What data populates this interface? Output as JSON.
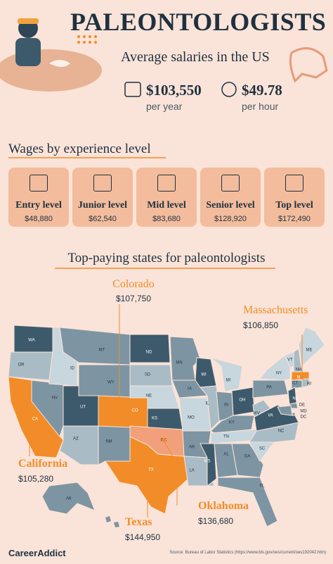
{
  "header": {
    "title": "PALEONTOLOGISTS",
    "subtitle": "Average salaries in the US"
  },
  "salaries": [
    {
      "amount": "$103,550",
      "unit": "per year"
    },
    {
      "amount": "$49.78",
      "unit": "per hour"
    }
  ],
  "experience": {
    "title": "Wages by experience level",
    "levels": [
      {
        "label": "Entry level",
        "wage": "$48,880"
      },
      {
        "label": "Junior level",
        "wage": "$62,540"
      },
      {
        "label": "Mid level",
        "wage": "$83,680"
      },
      {
        "label": "Senior level",
        "wage": "$128,920"
      },
      {
        "label": "Top level",
        "wage": "$172,490"
      }
    ]
  },
  "states": {
    "title": "Top-paying states for paleontologists",
    "callouts": [
      {
        "name": "Colorado",
        "wage": "$107,750"
      },
      {
        "name": "Massachusetts",
        "wage": "$106,850"
      },
      {
        "name": "California",
        "wage": "$105,280"
      },
      {
        "name": "Oklahoma",
        "wage": "$136,680"
      },
      {
        "name": "Texas",
        "wage": "$144,950"
      }
    ],
    "map_labels": [
      "WA",
      "OR",
      "CA",
      "NV",
      "ID",
      "MT",
      "WY",
      "UT",
      "AZ",
      "NM",
      "CO",
      "ND",
      "SD",
      "NE",
      "KS",
      "OK",
      "TX",
      "MN",
      "IA",
      "MO",
      "AR",
      "LA",
      "WI",
      "IL",
      "MI",
      "IN",
      "OH",
      "KY",
      "TN",
      "MS",
      "AL",
      "GA",
      "FL",
      "SC",
      "NC",
      "VA",
      "WV",
      "PA",
      "NY",
      "VT",
      "NH",
      "ME",
      "MA",
      "CT",
      "RI",
      "NJ",
      "DE",
      "MD",
      "DC",
      "AK"
    ]
  },
  "footer": {
    "brand": "CareerAddict",
    "source": "Source: Bureau of Labor Statistics (https://www.bls.gov/oes/current/oes192042.htm)"
  }
}
